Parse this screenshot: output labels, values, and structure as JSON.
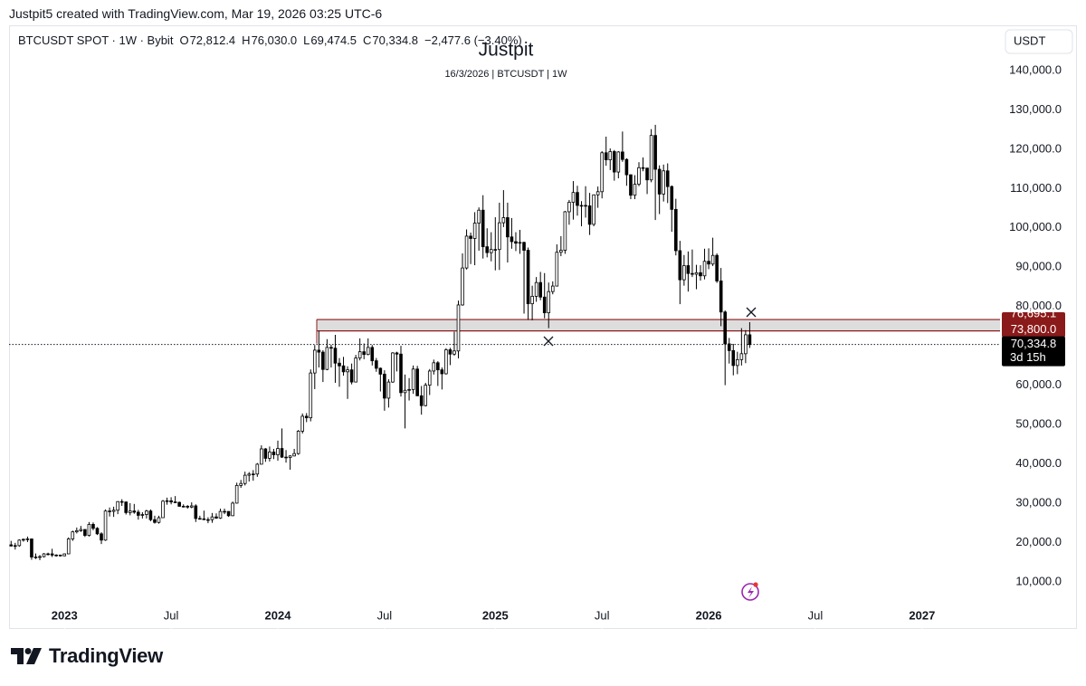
{
  "header": "Justpit5 created with TradingView.com, Mar 19, 2026 03:25 UTC-6",
  "logo": "TradingView",
  "chart_data": {
    "type": "candlestick",
    "title": "Justpit",
    "subtitle": "16/3/2026 | BTCUSDT | 1W",
    "symbol": "BTCUSDT SPOT · 1W · Bybit",
    "ohlc": [
      {
        "key": "O",
        "value": "72,812.4"
      },
      {
        "key": "H",
        "value": "76,030.0"
      },
      {
        "key": "L",
        "value": "69,474.5"
      },
      {
        "key": "C",
        "value": "70,334.8"
      }
    ],
    "change": "−2,477.6 (−3.40%)",
    "currency": "USDT",
    "up_color": "#ffffff",
    "down_color": "#000000",
    "zone_color": "#8b1a1a",
    "zone": {
      "top": {
        "value": 76695.1,
        "label": "76,695.1"
      },
      "bottom": {
        "value": 73800,
        "label": "73,800.0"
      }
    },
    "last_price": {
      "value": 70334.8,
      "label": "70,334.8",
      "countdown": "3d 15h"
    },
    "xlim": [
      -0.5,
      241
    ],
    "xticks": [
      {
        "value": 13,
        "label": "2023"
      },
      {
        "value": 39,
        "label": "Jul"
      },
      {
        "value": 65,
        "label": "2024"
      },
      {
        "value": 91,
        "label": "Jul"
      },
      {
        "value": 118,
        "label": "2025"
      },
      {
        "value": 144,
        "label": "Jul"
      },
      {
        "value": 170,
        "label": "2026"
      },
      {
        "value": 196,
        "label": "Jul"
      },
      {
        "value": 222,
        "label": "2027"
      }
    ],
    "ylim": [
      -2000,
      151500
    ],
    "yticks": [
      {
        "value": 10000,
        "label": "10,000.0"
      },
      {
        "value": 20000,
        "label": "20,000.0"
      },
      {
        "value": 30000,
        "label": "30,000.0"
      },
      {
        "value": 40000,
        "label": "40,000.0"
      },
      {
        "value": 50000,
        "label": "50,000.0"
      },
      {
        "value": 60000,
        "label": "60,000.0"
      },
      {
        "value": 70000,
        "label": "70,000.0"
      },
      {
        "value": 80000,
        "label": "80,000.0"
      },
      {
        "value": 90000,
        "label": "90,000.0"
      },
      {
        "value": 100000,
        "label": "100,000.0"
      },
      {
        "value": 110000,
        "label": "110,000.0"
      },
      {
        "value": 120000,
        "label": "120,000.0"
      },
      {
        "value": 130000,
        "label": "130,000.0"
      },
      {
        "value": 140000,
        "label": "140,000.0"
      }
    ],
    "candles": [
      [
        19400,
        20400,
        19000,
        19100
      ],
      [
        19100,
        19900,
        18200,
        19200
      ],
      [
        19200,
        20800,
        18900,
        20600
      ],
      [
        20600,
        21000,
        20200,
        20800
      ],
      [
        20800,
        21500,
        20100,
        20900
      ],
      [
        20900,
        21000,
        15600,
        16300
      ],
      [
        16300,
        17200,
        15800,
        16200
      ],
      [
        16200,
        16800,
        15500,
        16400
      ],
      [
        16400,
        17300,
        16200,
        17100
      ],
      [
        17100,
        17400,
        16700,
        17100
      ],
      [
        17100,
        18400,
        16300,
        16800
      ],
      [
        16800,
        17000,
        16400,
        16800
      ],
      [
        16800,
        16900,
        16400,
        16600
      ],
      [
        16600,
        17200,
        16500,
        17100
      ],
      [
        17100,
        21300,
        17100,
        20900
      ],
      [
        20900,
        23000,
        20400,
        22700
      ],
      [
        22700,
        23800,
        22300,
        23000
      ],
      [
        23000,
        24200,
        22700,
        23300
      ],
      [
        23300,
        23400,
        21400,
        21800
      ],
      [
        21800,
        25200,
        21500,
        24600
      ],
      [
        24600,
        25100,
        23100,
        23600
      ],
      [
        23600,
        23900,
        21900,
        22200
      ],
      [
        22200,
        22600,
        19600,
        20600
      ],
      [
        20600,
        28400,
        20400,
        28000
      ],
      [
        28000,
        28900,
        26600,
        27900
      ],
      [
        27900,
        29100,
        26500,
        28200
      ],
      [
        28200,
        30500,
        27200,
        30400
      ],
      [
        30400,
        31000,
        29300,
        30300
      ],
      [
        30300,
        30400,
        27100,
        27600
      ],
      [
        27600,
        30000,
        26900,
        28000
      ],
      [
        28000,
        29800,
        27300,
        27700
      ],
      [
        27700,
        28300,
        25800,
        26900
      ],
      [
        26900,
        27700,
        26100,
        27100
      ],
      [
        27100,
        28300,
        26100,
        28000
      ],
      [
        28000,
        28400,
        25400,
        25800
      ],
      [
        25800,
        26800,
        24800,
        25100
      ],
      [
        25100,
        26800,
        24800,
        26300
      ],
      [
        26300,
        30800,
        26300,
        30500
      ],
      [
        30500,
        31400,
        29600,
        30600
      ],
      [
        30600,
        31500,
        29700,
        30300
      ],
      [
        30300,
        31800,
        30000,
        30200
      ],
      [
        30200,
        30400,
        29100,
        29200
      ],
      [
        29200,
        29700,
        28900,
        29200
      ],
      [
        29200,
        29500,
        28600,
        29000
      ],
      [
        29000,
        30200,
        28700,
        29300
      ],
      [
        29300,
        29700,
        25200,
        26100
      ],
      [
        26100,
        26800,
        25800,
        26000
      ],
      [
        26000,
        28100,
        25700,
        25800
      ],
      [
        25800,
        26400,
        24900,
        25800
      ],
      [
        25800,
        27500,
        25000,
        26500
      ],
      [
        26500,
        27400,
        26000,
        26200
      ],
      [
        26200,
        28600,
        26000,
        27900
      ],
      [
        27900,
        28600,
        27200,
        27900
      ],
      [
        27900,
        27900,
        26500,
        26800
      ],
      [
        26800,
        30400,
        26700,
        30000
      ],
      [
        30000,
        35200,
        29900,
        34500
      ],
      [
        34500,
        35900,
        33900,
        35000
      ],
      [
        35000,
        38000,
        34500,
        37100
      ],
      [
        37100,
        37900,
        35500,
        37400
      ],
      [
        37400,
        38400,
        35700,
        37400
      ],
      [
        37400,
        40200,
        36700,
        39900
      ],
      [
        39900,
        44700,
        39900,
        43800
      ],
      [
        43800,
        44000,
        40500,
        41400
      ],
      [
        41400,
        44400,
        40600,
        43000
      ],
      [
        43000,
        43800,
        41200,
        42300
      ],
      [
        42300,
        45900,
        40800,
        43900
      ],
      [
        43900,
        49000,
        41500,
        41700
      ],
      [
        41700,
        43500,
        40300,
        41600
      ],
      [
        41600,
        42200,
        38500,
        42000
      ],
      [
        42000,
        43800,
        41900,
        42600
      ],
      [
        42600,
        48600,
        42300,
        48300
      ],
      [
        48300,
        52800,
        47700,
        52100
      ],
      [
        52100,
        52900,
        50600,
        51700
      ],
      [
        51700,
        64000,
        50800,
        63100
      ],
      [
        63100,
        70200,
        59000,
        68900
      ],
      [
        68900,
        73800,
        64500,
        68400
      ],
      [
        68400,
        68900,
        60800,
        64000
      ],
      [
        64000,
        71700,
        63800,
        69600
      ],
      [
        69600,
        70300,
        64500,
        69400
      ],
      [
        69400,
        72800,
        60600,
        65600
      ],
      [
        65600,
        66900,
        59600,
        64900
      ],
      [
        64900,
        67200,
        62400,
        63400
      ],
      [
        63400,
        64800,
        56500,
        63900
      ],
      [
        63900,
        65500,
        60200,
        60800
      ],
      [
        60800,
        67700,
        60700,
        66900
      ],
      [
        66900,
        71900,
        66300,
        68500
      ],
      [
        68500,
        70600,
        66600,
        67800
      ],
      [
        67800,
        71900,
        67600,
        69600
      ],
      [
        69600,
        70200,
        65000,
        66200
      ],
      [
        66200,
        66900,
        63400,
        64300
      ],
      [
        64300,
        64500,
        58400,
        62800
      ],
      [
        62800,
        63800,
        53500,
        56700
      ],
      [
        56700,
        61500,
        54300,
        60800
      ],
      [
        60800,
        68400,
        60600,
        68200
      ],
      [
        68200,
        68500,
        63500,
        67900
      ],
      [
        67900,
        70000,
        57100,
        58100
      ],
      [
        58100,
        62700,
        49000,
        58700
      ],
      [
        58700,
        61800,
        56100,
        58900
      ],
      [
        58900,
        65000,
        57800,
        64100
      ],
      [
        64100,
        64900,
        57200,
        57300
      ],
      [
        57300,
        59800,
        52500,
        54800
      ],
      [
        54800,
        60600,
        54600,
        60000
      ],
      [
        60000,
        64100,
        57500,
        63600
      ],
      [
        63600,
        66500,
        62700,
        65700
      ],
      [
        65700,
        66100,
        59800,
        63900
      ],
      [
        63900,
        64500,
        58900,
        62900
      ],
      [
        62900,
        69400,
        62700,
        69000
      ],
      [
        69000,
        69500,
        65100,
        67900
      ],
      [
        67900,
        73600,
        67500,
        68700
      ],
      [
        68700,
        81500,
        66800,
        80400
      ],
      [
        80400,
        93500,
        80200,
        89800
      ],
      [
        89800,
        99600,
        89400,
        97900
      ],
      [
        97900,
        98800,
        90800,
        97300
      ],
      [
        97300,
        104000,
        90500,
        101200
      ],
      [
        101200,
        105200,
        94200,
        104500
      ],
      [
        104500,
        108300,
        92200,
        95200
      ],
      [
        95200,
        99900,
        92500,
        93700
      ],
      [
        93700,
        98900,
        91500,
        94500
      ],
      [
        94500,
        102700,
        89200,
        94500
      ],
      [
        94500,
        106400,
        89300,
        101300
      ],
      [
        101300,
        109600,
        100200,
        102600
      ],
      [
        102600,
        106400,
        91200,
        97700
      ],
      [
        97700,
        102500,
        94700,
        96500
      ],
      [
        96500,
        98900,
        94100,
        96100
      ],
      [
        96100,
        99500,
        93400,
        96300
      ],
      [
        96300,
        96500,
        78200,
        94300
      ],
      [
        94300,
        95000,
        76600,
        80700
      ],
      [
        80700,
        85300,
        76500,
        82600
      ],
      [
        82600,
        87500,
        81200,
        86100
      ],
      [
        86100,
        88800,
        81600,
        82400
      ],
      [
        82400,
        88500,
        77000,
        78400
      ],
      [
        78400,
        86100,
        74500,
        83800
      ],
      [
        83800,
        86400,
        83100,
        85200
      ],
      [
        85200,
        95800,
        85100,
        93800
      ],
      [
        93800,
        97900,
        92800,
        94300
      ],
      [
        94300,
        104300,
        93400,
        104100
      ],
      [
        104100,
        107100,
        100800,
        106500
      ],
      [
        106500,
        111900,
        102100,
        109000
      ],
      [
        109000,
        110700,
        103100,
        105700
      ],
      [
        105700,
        106800,
        100400,
        105700
      ],
      [
        105700,
        110600,
        102600,
        105600
      ],
      [
        105600,
        108900,
        98200,
        100900
      ],
      [
        100900,
        108500,
        100400,
        108400
      ],
      [
        108400,
        110500,
        105100,
        109200
      ],
      [
        109200,
        119500,
        107500,
        119100
      ],
      [
        119100,
        123200,
        115800,
        117300
      ],
      [
        117300,
        120200,
        114700,
        119400
      ],
      [
        119400,
        119800,
        112000,
        114200
      ],
      [
        114200,
        119500,
        112600,
        119300
      ],
      [
        119300,
        124500,
        116800,
        117400
      ],
      [
        117400,
        117700,
        110700,
        113500
      ],
      [
        113500,
        113600,
        107300,
        108300
      ],
      [
        108300,
        113400,
        107300,
        111100
      ],
      [
        111100,
        116700,
        110600,
        115300
      ],
      [
        115300,
        117900,
        114400,
        115200
      ],
      [
        115200,
        115300,
        108600,
        112200
      ],
      [
        112200,
        125100,
        111600,
        123500
      ],
      [
        123500,
        126200,
        102000,
        114900
      ],
      [
        114900,
        115900,
        103500,
        108600
      ],
      [
        108600,
        116100,
        106700,
        114500
      ],
      [
        114500,
        116400,
        106300,
        110500
      ],
      [
        110500,
        110800,
        99000,
        104700
      ],
      [
        104700,
        107400,
        93000,
        94200
      ],
      [
        94200,
        96700,
        80600,
        86800
      ],
      [
        86800,
        93100,
        85300,
        90400
      ],
      [
        90400,
        94000,
        83800,
        88400
      ],
      [
        88400,
        94500,
        87500,
        88200
      ],
      [
        88200,
        90600,
        84400,
        88600
      ],
      [
        88600,
        90500,
        86600,
        87800
      ],
      [
        87800,
        94700,
        86900,
        91500
      ],
      [
        91500,
        94800,
        89500,
        90800
      ],
      [
        90800,
        97500,
        90300,
        93000
      ],
      [
        93000,
        93500,
        86000,
        86500
      ],
      [
        86500,
        89800,
        75000,
        78600
      ],
      [
        78600,
        79000,
        60000,
        70500
      ],
      [
        70500,
        72000,
        65500,
        68800
      ],
      [
        68800,
        70500,
        62500,
        65000
      ],
      [
        65000,
        68500,
        62800,
        66500
      ],
      [
        66500,
        74500,
        65000,
        68000
      ],
      [
        68000,
        74000,
        65600,
        72812.4
      ],
      [
        72812.4,
        76030,
        69474.5,
        70334.8
      ]
    ]
  }
}
